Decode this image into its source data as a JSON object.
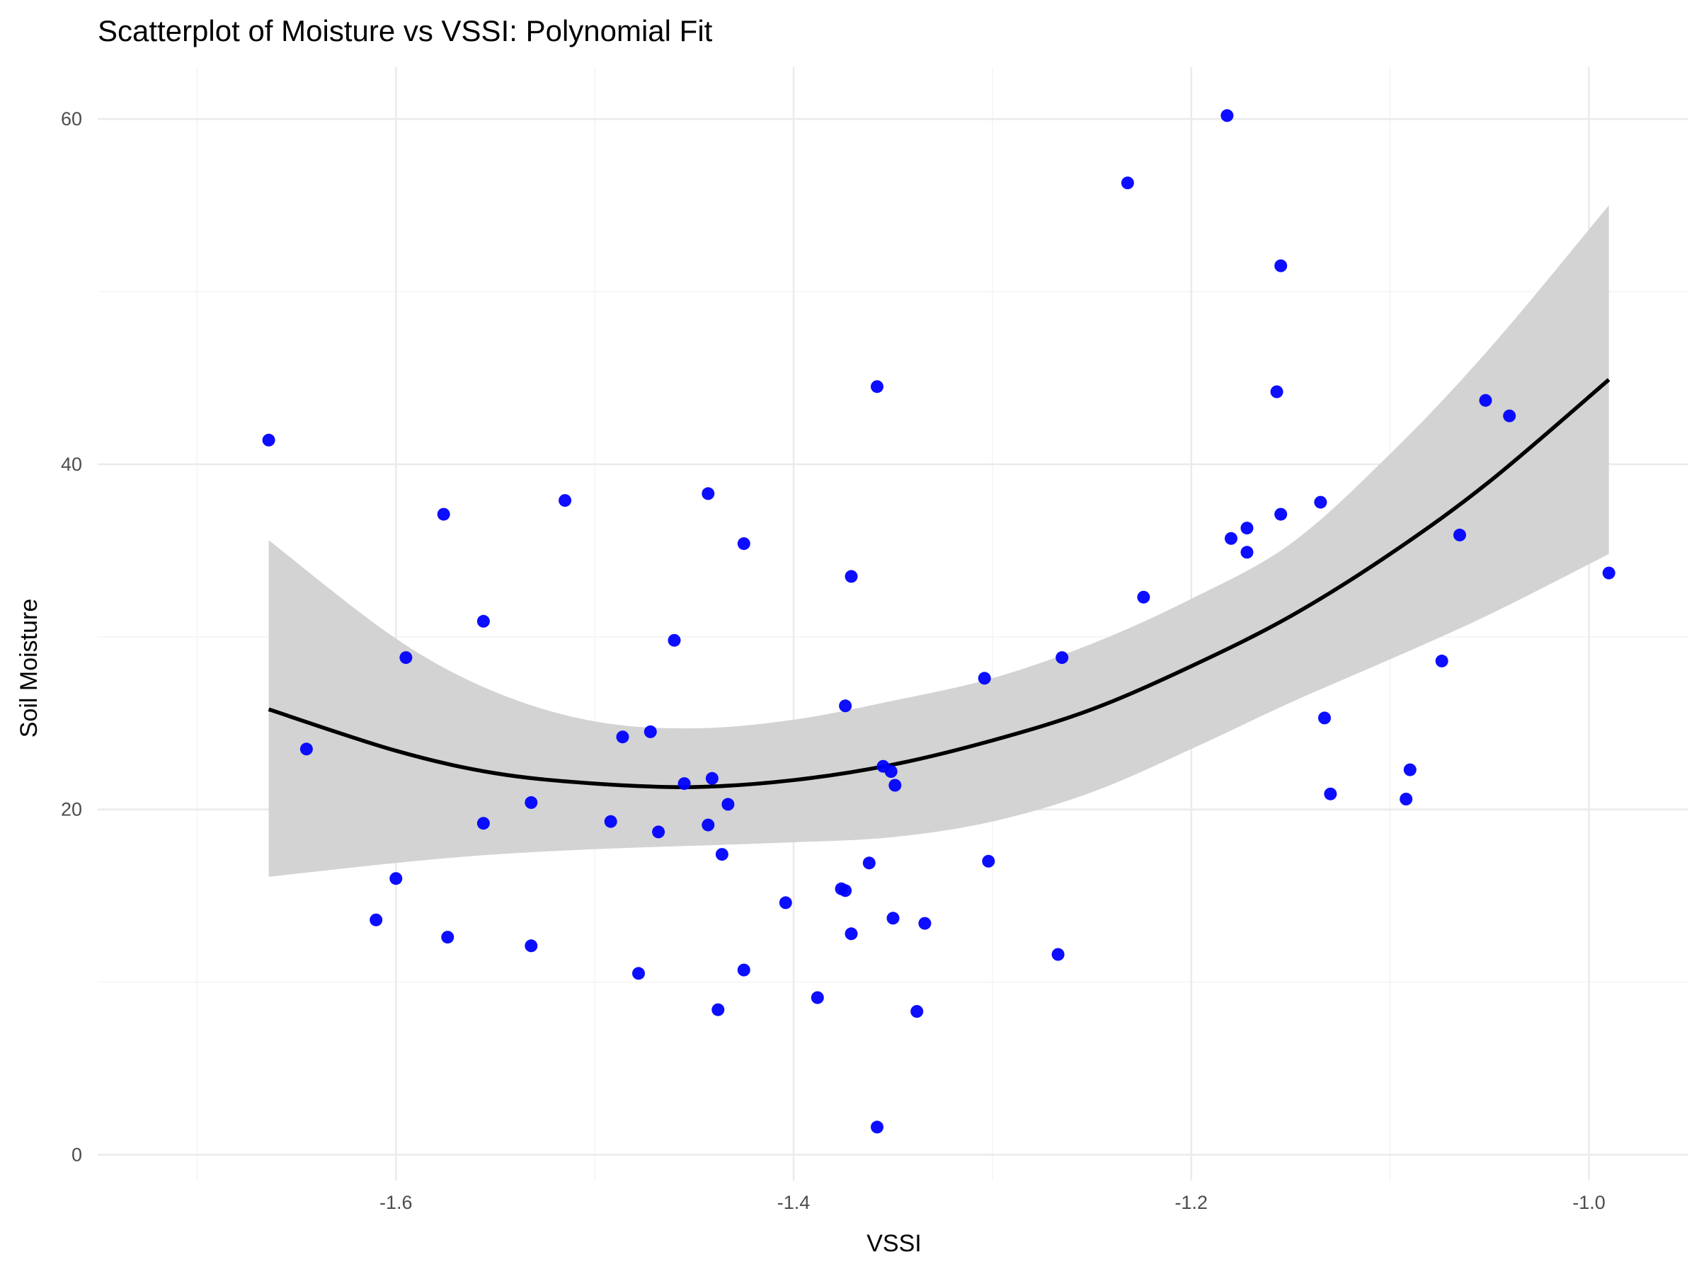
{
  "chart_data": {
    "type": "scatter",
    "title": "Scatterplot of Moisture vs VSSI: Polynomial Fit",
    "xlabel": "VSSI",
    "ylabel": "Soil Moisture",
    "xlim": [
      -1.75,
      -0.95
    ],
    "ylim": [
      -1.5,
      63
    ],
    "x_ticks": [
      -1.6,
      -1.4,
      -1.2,
      -1.0
    ],
    "x_tick_labels": [
      "-1.6",
      "-1.4",
      "-1.2",
      "-1.0"
    ],
    "y_ticks": [
      0,
      20,
      40,
      60
    ],
    "y_tick_labels": [
      "0",
      "20",
      "40",
      "60"
    ],
    "grid": true,
    "point_color": "#0000ff",
    "fit_color": "#000000",
    "band_color": "#d3d3d3",
    "points": [
      {
        "x": -1.664,
        "y": 41.4
      },
      {
        "x": -1.645,
        "y": 23.5
      },
      {
        "x": -1.61,
        "y": 13.6
      },
      {
        "x": -1.6,
        "y": 16.0
      },
      {
        "x": -1.595,
        "y": 28.8
      },
      {
        "x": -1.576,
        "y": 37.1
      },
      {
        "x": -1.574,
        "y": 12.6
      },
      {
        "x": -1.556,
        "y": 30.9
      },
      {
        "x": -1.556,
        "y": 19.2
      },
      {
        "x": -1.532,
        "y": 12.1
      },
      {
        "x": -1.532,
        "y": 20.4
      },
      {
        "x": -1.515,
        "y": 37.9
      },
      {
        "x": -1.492,
        "y": 19.3
      },
      {
        "x": -1.486,
        "y": 24.2
      },
      {
        "x": -1.478,
        "y": 10.5
      },
      {
        "x": -1.472,
        "y": 24.5
      },
      {
        "x": -1.468,
        "y": 18.7
      },
      {
        "x": -1.46,
        "y": 29.8
      },
      {
        "x": -1.455,
        "y": 21.5
      },
      {
        "x": -1.443,
        "y": 38.3
      },
      {
        "x": -1.443,
        "y": 19.1
      },
      {
        "x": -1.441,
        "y": 21.8
      },
      {
        "x": -1.438,
        "y": 8.4
      },
      {
        "x": -1.436,
        "y": 17.4
      },
      {
        "x": -1.433,
        "y": 20.3
      },
      {
        "x": -1.425,
        "y": 35.4
      },
      {
        "x": -1.425,
        "y": 10.7
      },
      {
        "x": -1.404,
        "y": 14.6
      },
      {
        "x": -1.388,
        "y": 9.1
      },
      {
        "x": -1.376,
        "y": 15.4
      },
      {
        "x": -1.374,
        "y": 15.3
      },
      {
        "x": -1.374,
        "y": 26.0
      },
      {
        "x": -1.371,
        "y": 12.8
      },
      {
        "x": -1.371,
        "y": 33.5
      },
      {
        "x": -1.362,
        "y": 16.9
      },
      {
        "x": -1.358,
        "y": 44.5
      },
      {
        "x": -1.358,
        "y": 1.6
      },
      {
        "x": -1.355,
        "y": 22.5
      },
      {
        "x": -1.351,
        "y": 22.2
      },
      {
        "x": -1.35,
        "y": 13.7
      },
      {
        "x": -1.349,
        "y": 21.4
      },
      {
        "x": -1.338,
        "y": 8.3
      },
      {
        "x": -1.334,
        "y": 13.4
      },
      {
        "x": -1.304,
        "y": 27.6
      },
      {
        "x": -1.302,
        "y": 17.0
      },
      {
        "x": -1.267,
        "y": 11.6
      },
      {
        "x": -1.265,
        "y": 28.8
      },
      {
        "x": -1.232,
        "y": 56.3
      },
      {
        "x": -1.224,
        "y": 32.3
      },
      {
        "x": -1.182,
        "y": 60.2
      },
      {
        "x": -1.18,
        "y": 35.7
      },
      {
        "x": -1.172,
        "y": 36.3
      },
      {
        "x": -1.172,
        "y": 34.9
      },
      {
        "x": -1.157,
        "y": 44.2
      },
      {
        "x": -1.155,
        "y": 51.5
      },
      {
        "x": -1.155,
        "y": 37.1
      },
      {
        "x": -1.135,
        "y": 37.8
      },
      {
        "x": -1.133,
        "y": 25.3
      },
      {
        "x": -1.13,
        "y": 20.9
      },
      {
        "x": -1.092,
        "y": 20.6
      },
      {
        "x": -1.09,
        "y": 22.3
      },
      {
        "x": -1.074,
        "y": 28.6
      },
      {
        "x": -1.065,
        "y": 35.9
      },
      {
        "x": -1.052,
        "y": 43.7
      },
      {
        "x": -1.04,
        "y": 42.8
      },
      {
        "x": -0.99,
        "y": 33.7
      }
    ],
    "fit": {
      "method": "polynomial",
      "degree": 2,
      "curve": [
        {
          "x": -1.664,
          "y": 25.8,
          "lower": 16.1,
          "upper": 35.6
        },
        {
          "x": -1.6,
          "y": 23.4,
          "lower": 16.9,
          "upper": 29.9
        },
        {
          "x": -1.55,
          "y": 22.1,
          "lower": 17.4,
          "upper": 26.8
        },
        {
          "x": -1.5,
          "y": 21.5,
          "lower": 17.7,
          "upper": 25.1
        },
        {
          "x": -1.45,
          "y": 21.3,
          "lower": 17.9,
          "upper": 24.7
        },
        {
          "x": -1.4,
          "y": 21.7,
          "lower": 18.1,
          "upper": 25.2
        },
        {
          "x": -1.35,
          "y": 22.6,
          "lower": 18.4,
          "upper": 26.3
        },
        {
          "x": -1.3,
          "y": 24.0,
          "lower": 19.3,
          "upper": 27.6
        },
        {
          "x": -1.25,
          "y": 25.8,
          "lower": 21.0,
          "upper": 29.6
        },
        {
          "x": -1.2,
          "y": 28.3,
          "lower": 23.5,
          "upper": 32.2
        },
        {
          "x": -1.15,
          "y": 31.2,
          "lower": 26.2,
          "upper": 35.4
        },
        {
          "x": -1.1,
          "y": 34.8,
          "lower": 28.7,
          "upper": 40.6
        },
        {
          "x": -1.05,
          "y": 39.0,
          "lower": 31.3,
          "upper": 46.7
        },
        {
          "x": -0.99,
          "y": 44.9,
          "lower": 34.8,
          "upper": 55.0
        }
      ]
    }
  }
}
